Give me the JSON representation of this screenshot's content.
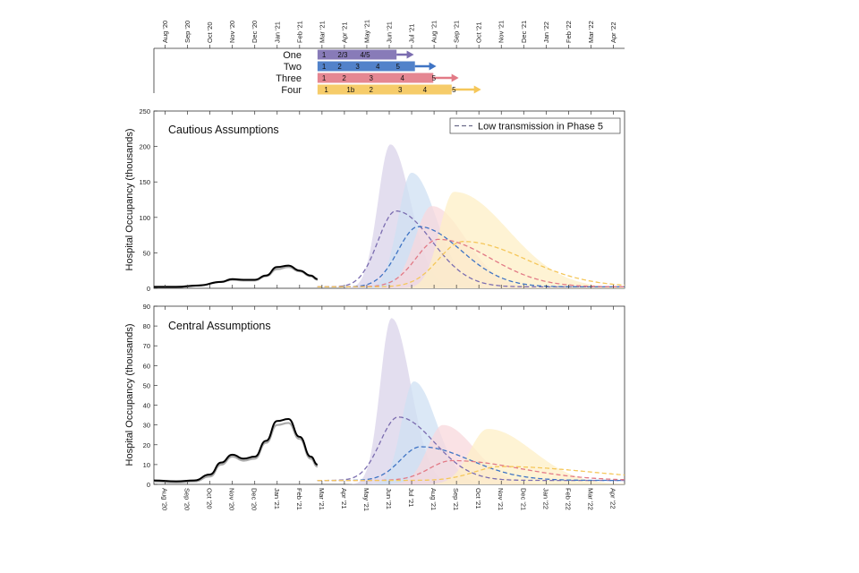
{
  "colors": {
    "one": "#7b6db0",
    "two": "#3f74c4",
    "three": "#e27a86",
    "four": "#f5c75a",
    "band_one": "#d9d3ea",
    "band_two": "#cfe0f3",
    "band_three": "#f8d8dc",
    "band_four": "#fdefc6",
    "observed": "#000000",
    "model": "#aaaaaa"
  },
  "chart_data": [
    {
      "type": "timeline",
      "name": "roadmap",
      "months": [
        "Aug '20",
        "Sep '20",
        "Oct '20",
        "Nov '20",
        "Dec '20",
        "Jan '21",
        "Feb '21",
        "Mar '21",
        "Apr '21",
        "May '21",
        "Jun '21",
        "Jul '21",
        "Aug '21",
        "Sep '21",
        "Oct '21",
        "Nov '21",
        "Dec '21",
        "Jan '22",
        "Feb '22",
        "Mar '22",
        "Apr '22"
      ],
      "plans": [
        {
          "label": "One",
          "color_key": "one",
          "start": 7.3,
          "end": 11.6,
          "phases": [
            {
              "text": "1",
              "at": 7.5
            },
            {
              "text": "2/3",
              "at": 8.2
            },
            {
              "text": "4/5",
              "at": 9.2
            }
          ]
        },
        {
          "label": "Two",
          "color_key": "two",
          "start": 7.3,
          "end": 12.6,
          "phases": [
            {
              "text": "1",
              "at": 7.5
            },
            {
              "text": "2",
              "at": 8.2
            },
            {
              "text": "3",
              "at": 9.0
            },
            {
              "text": "4",
              "at": 9.9
            },
            {
              "text": "5",
              "at": 10.8
            }
          ]
        },
        {
          "label": "Three",
          "color_key": "three",
          "start": 7.3,
          "end": 13.6,
          "phases": [
            {
              "text": "1",
              "at": 7.5
            },
            {
              "text": "2",
              "at": 8.4
            },
            {
              "text": "3",
              "at": 9.6
            },
            {
              "text": "4",
              "at": 11.0
            },
            {
              "text": "5",
              "at": 12.4
            }
          ]
        },
        {
          "label": "Four",
          "color_key": "four",
          "start": 7.3,
          "end": 14.6,
          "phases": [
            {
              "text": "1",
              "at": 7.6
            },
            {
              "text": "1b",
              "at": 8.6
            },
            {
              "text": "2",
              "at": 9.6
            },
            {
              "text": "3",
              "at": 10.9
            },
            {
              "text": "4",
              "at": 12.0
            },
            {
              "text": "5",
              "at": 13.3
            }
          ]
        }
      ]
    },
    {
      "type": "area",
      "name": "cautious",
      "title": "Cautious Assumptions",
      "ylabel": "Hospital Occupancy (thousands)",
      "ylim": [
        0,
        250
      ],
      "yticks": [
        0,
        50,
        100,
        150,
        200,
        250
      ],
      "xlim": [
        0,
        21
      ],
      "legend": {
        "label": "Low transmission in Phase 5",
        "position": "top-right"
      },
      "observed": {
        "x": [
          0,
          1,
          2,
          3,
          3.5,
          4,
          4.5,
          5,
          5.5,
          6,
          6.5,
          7,
          7.3
        ],
        "y": [
          2,
          2,
          4,
          9,
          13,
          12,
          12,
          18,
          30,
          32,
          25,
          18,
          13
        ]
      },
      "model": {
        "x": [
          0,
          1,
          2,
          3,
          3.5,
          4,
          4.5,
          5,
          5.5,
          6,
          6.5,
          7,
          7.3
        ],
        "y": [
          2,
          2,
          4,
          9,
          12,
          11,
          11,
          17,
          27,
          30,
          24,
          17,
          12
        ]
      },
      "bands": [
        {
          "color_key": "one",
          "peak_x": 10.55,
          "peak_y": 203,
          "rise": 0.55,
          "fall": 0.9
        },
        {
          "color_key": "two",
          "peak_x": 11.5,
          "peak_y": 163,
          "rise": 0.6,
          "fall": 1.1
        },
        {
          "color_key": "three",
          "peak_x": 12.4,
          "peak_y": 116,
          "rise": 0.75,
          "fall": 1.5
        },
        {
          "color_key": "four",
          "peak_x": 13.4,
          "peak_y": 136,
          "rise": 0.65,
          "fall": 2.4
        }
      ],
      "dashed": [
        {
          "color_key": "one",
          "peak_x": 10.8,
          "peak_y": 107,
          "rise": 0.8,
          "fall": 1.6
        },
        {
          "color_key": "two",
          "peak_x": 11.8,
          "peak_y": 85,
          "rise": 0.9,
          "fall": 1.9
        },
        {
          "color_key": "three",
          "peak_x": 12.7,
          "peak_y": 67,
          "rise": 1.0,
          "fall": 2.3
        },
        {
          "color_key": "four",
          "peak_x": 13.8,
          "peak_y": 64,
          "rise": 1.1,
          "fall": 2.8
        }
      ]
    },
    {
      "type": "area",
      "name": "central",
      "title": "Central Assumptions",
      "ylabel": "Hospital Occupancy (thousands)",
      "ylim": [
        0,
        90
      ],
      "yticks": [
        0,
        10,
        20,
        30,
        40,
        50,
        60,
        70,
        80,
        90
      ],
      "xlim": [
        0,
        21
      ],
      "observed": {
        "x": [
          0,
          1,
          1.8,
          2.5,
          3,
          3.5,
          4,
          4.5,
          5,
          5.5,
          6,
          6.5,
          7,
          7.3
        ],
        "y": [
          2,
          1.5,
          2,
          5,
          11,
          15,
          13,
          14,
          22,
          32,
          33,
          24,
          14,
          10
        ]
      },
      "model": {
        "x": [
          0,
          1,
          1.8,
          2.5,
          3,
          3.5,
          4,
          4.5,
          5,
          5.5,
          6,
          6.5,
          7,
          7.3
        ],
        "y": [
          1.5,
          1,
          1.5,
          4,
          10,
          14,
          12,
          13,
          21,
          30,
          31,
          23,
          13,
          9
        ]
      },
      "bands": [
        {
          "color_key": "one",
          "peak_x": 10.6,
          "peak_y": 84,
          "rise": 0.5,
          "fall": 0.85
        },
        {
          "color_key": "two",
          "peak_x": 11.6,
          "peak_y": 52,
          "rise": 0.55,
          "fall": 1.0
        },
        {
          "color_key": "three",
          "peak_x": 12.9,
          "peak_y": 30,
          "rise": 0.7,
          "fall": 1.4
        },
        {
          "color_key": "four",
          "peak_x": 14.9,
          "peak_y": 28,
          "rise": 0.8,
          "fall": 2.0
        }
      ],
      "dashed": [
        {
          "color_key": "one",
          "peak_x": 10.9,
          "peak_y": 32,
          "rise": 0.8,
          "fall": 1.6
        },
        {
          "color_key": "two",
          "peak_x": 11.9,
          "peak_y": 17,
          "rise": 0.9,
          "fall": 2.2
        },
        {
          "color_key": "three",
          "peak_x": 13.3,
          "peak_y": 10,
          "rise": 1.0,
          "fall": 3.0
        },
        {
          "color_key": "four",
          "peak_x": 15.5,
          "peak_y": 7,
          "rise": 1.2,
          "fall": 4.0
        }
      ]
    }
  ]
}
